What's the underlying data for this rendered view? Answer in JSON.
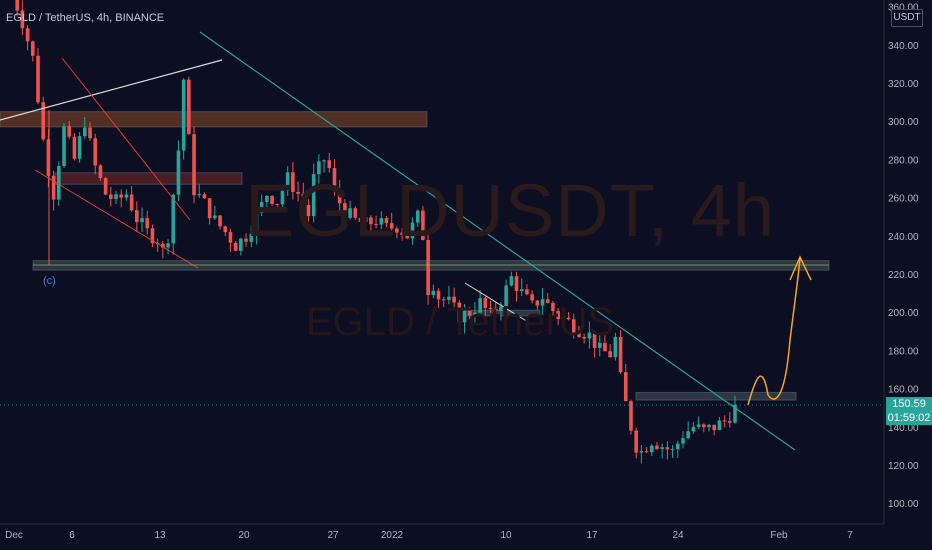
{
  "header": {
    "symbol_title": "EGLD / TetherUS, 4h, BINANCE"
  },
  "watermark": {
    "line1": "EGLDUSDT, 4h",
    "line2": "EGLD / TetherUS"
  },
  "axis": {
    "currency": "USDT"
  },
  "last_price": {
    "value": "150.59",
    "countdown": "01:59:02"
  },
  "annotations": {
    "wave_label": "(c)"
  },
  "colors": {
    "background": "#0c0e21",
    "bull": "#26a69a",
    "bear": "#ef5350",
    "trendline": "#26a69a",
    "projection": "#f5a623",
    "last_price_bg": "#26a69a"
  },
  "chart_data": {
    "type": "candlestick",
    "symbol": "EGLD / TetherUS",
    "interval": "4h",
    "exchange": "BINANCE",
    "ylim": [
      90,
      370
    ],
    "y_ticks": [
      100,
      120,
      140,
      160,
      180,
      200,
      220,
      240,
      260,
      280,
      300,
      320,
      340,
      360
    ],
    "y_tick_labels": [
      "100.00",
      "120.00",
      "140.00",
      "160.00",
      "180.00",
      "200.00",
      "220.00",
      "240.00",
      "260.00",
      "280.00",
      "300.00",
      "320.00",
      "340.00",
      "360.00"
    ],
    "x_tick_labels": [
      "Dec",
      "6",
      "13",
      "20",
      "27",
      "2022",
      "10",
      "17",
      "24",
      "Feb",
      "7"
    ],
    "last_price": 150.59,
    "price_path": [
      [
        0,
        368
      ],
      [
        2,
        352
      ],
      [
        4,
        333
      ],
      [
        5,
        312
      ],
      [
        6,
        290
      ],
      [
        7,
        275
      ],
      [
        8,
        262
      ],
      [
        10,
        296
      ],
      [
        12,
        280
      ],
      [
        14,
        300
      ],
      [
        16,
        276
      ],
      [
        18,
        262
      ],
      [
        20,
        258
      ],
      [
        22,
        262
      ],
      [
        24,
        249
      ],
      [
        26,
        242
      ],
      [
        28,
        238
      ],
      [
        29,
        232
      ],
      [
        30,
        240
      ],
      [
        31,
        262
      ],
      [
        32,
        285
      ],
      [
        33,
        322
      ],
      [
        34,
        290
      ],
      [
        35,
        264
      ],
      [
        37,
        257
      ],
      [
        39,
        248
      ],
      [
        41,
        242
      ],
      [
        43,
        235
      ],
      [
        45,
        240
      ],
      [
        47,
        250
      ],
      [
        49,
        262
      ],
      [
        51,
        258
      ],
      [
        53,
        270
      ],
      [
        55,
        262
      ],
      [
        57,
        251
      ],
      [
        58,
        270
      ],
      [
        60,
        280
      ],
      [
        61,
        275
      ],
      [
        62,
        262
      ],
      [
        64,
        253
      ],
      [
        66,
        248
      ],
      [
        68,
        246
      ],
      [
        70,
        248
      ],
      [
        72,
        244
      ],
      [
        74,
        245
      ],
      [
        76,
        240
      ],
      [
        78,
        250
      ],
      [
        79,
        240
      ],
      [
        80,
        212
      ],
      [
        81,
        215
      ],
      [
        82,
        208
      ],
      [
        84,
        205
      ],
      [
        86,
        198
      ],
      [
        88,
        200
      ],
      [
        90,
        205
      ],
      [
        92,
        198
      ],
      [
        94,
        206
      ],
      [
        95,
        212
      ],
      [
        96,
        218
      ],
      [
        98,
        210
      ],
      [
        100,
        203
      ],
      [
        102,
        208
      ],
      [
        103,
        204
      ],
      [
        105,
        198
      ],
      [
        107,
        195
      ],
      [
        109,
        191
      ],
      [
        111,
        188
      ],
      [
        113,
        180
      ],
      [
        115,
        178
      ],
      [
        116,
        186
      ],
      [
        117,
        165
      ],
      [
        118,
        152
      ],
      [
        119,
        140
      ],
      [
        120,
        130
      ],
      [
        121,
        127
      ],
      [
        123,
        133
      ],
      [
        125,
        130
      ],
      [
        127,
        127
      ],
      [
        129,
        136
      ],
      [
        131,
        140
      ],
      [
        133,
        138
      ],
      [
        135,
        140
      ],
      [
        137,
        143
      ],
      [
        138,
        146
      ],
      [
        139,
        150
      ]
    ],
    "candle_count": 140,
    "horizontal_zones": [
      {
        "low": 297,
        "high": 305,
        "color": "#8b4a2a"
      },
      {
        "low": 267,
        "high": 273,
        "color": "#7a2a2a"
      },
      {
        "low": 222,
        "high": 227,
        "color": "#4a5560"
      },
      {
        "low": 198,
        "high": 201,
        "color": "#4a5560"
      },
      {
        "low": 154,
        "high": 158,
        "color": "#4a5560"
      }
    ],
    "trendline_from": [
      33,
      346
    ],
    "trendline_to": [
      140,
      127
    ],
    "projection_target": 230
  }
}
